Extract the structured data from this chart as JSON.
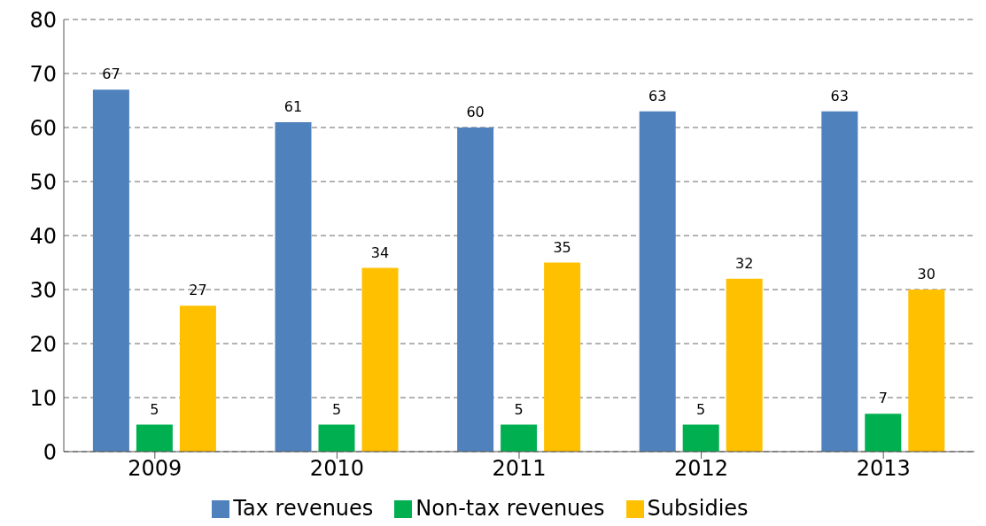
{
  "chart_data": {
    "type": "bar",
    "categories": [
      "2009",
      "2010",
      "2011",
      "2012",
      "2013"
    ],
    "series": [
      {
        "name": "Tax revenues",
        "color": "#4f81bd",
        "values": [
          67,
          61,
          60,
          63,
          63
        ]
      },
      {
        "name": "Non-tax revenues",
        "color": "#00b050",
        "values": [
          5,
          5,
          5,
          5,
          7
        ]
      },
      {
        "name": "Subsidies",
        "color": "#ffc000",
        "values": [
          27,
          34,
          35,
          32,
          30
        ]
      }
    ],
    "ylim": [
      0,
      80
    ],
    "yticks": [
      0,
      10,
      20,
      30,
      40,
      50,
      60,
      70,
      80
    ],
    "grid": "y",
    "legend": "bottom",
    "data_labels": true
  }
}
